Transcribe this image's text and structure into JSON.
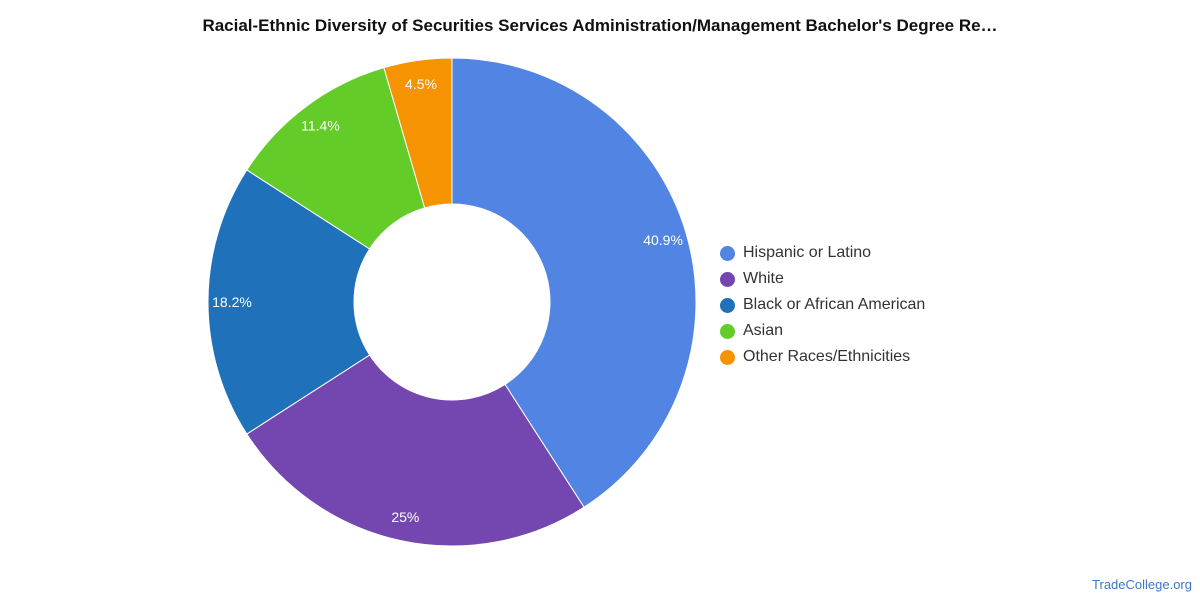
{
  "chart_data": {
    "type": "pie",
    "title": "Racial-Ethnic Diversity of Securities Services Administration/Management Bachelor's Degree Re…",
    "donut": true,
    "legend_position": "right",
    "slices": [
      {
        "label": "Hispanic or Latino",
        "value": 40.9,
        "display": "40.9%",
        "color": "#5285e3"
      },
      {
        "label": "White",
        "value": 25,
        "display": "25%",
        "color": "#7447b0"
      },
      {
        "label": "Black or African American",
        "value": 18.2,
        "display": "18.2%",
        "color": "#1f71ba"
      },
      {
        "label": "Asian",
        "value": 11.4,
        "display": "11.4%",
        "color": "#63cc29"
      },
      {
        "label": "Other Races/Ethnicities",
        "value": 4.5,
        "display": "4.5%",
        "color": "#f59400"
      }
    ]
  },
  "source": "TradeCollege.org"
}
